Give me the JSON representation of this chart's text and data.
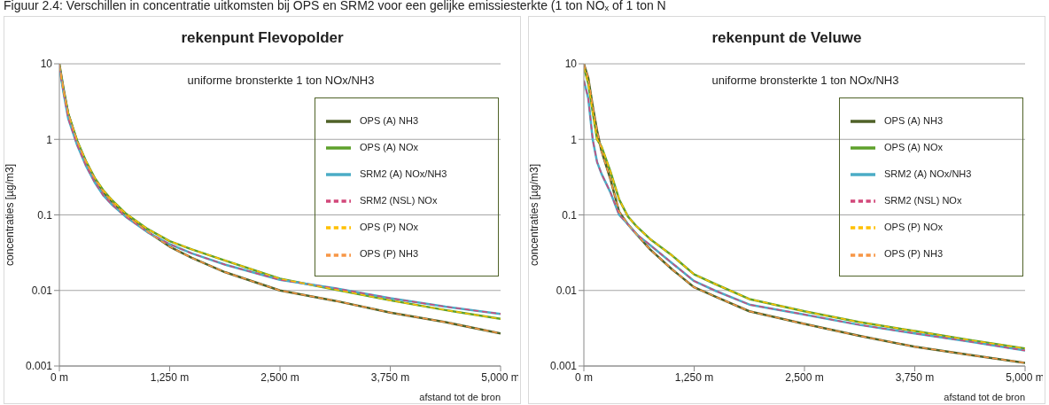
{
  "chart_data": [
    {
      "type": "line",
      "title": "rekenpunt Flevopolder",
      "subtitle": "uniforme bronsterkte 1 ton NOx/NH3",
      "xlabel": "afstand tot de bron",
      "ylabel": "concentraties [µg/m3]",
      "annotations": [
        "Figuur 2.4: Verschillen in concentratie uitkomsten bij OPS en SRM2 voor een gelijke emissiesterkte (1 ton NOₓ of 1 ton N"
      ],
      "x": [
        0,
        50,
        100,
        200,
        300,
        400,
        500,
        600,
        750,
        1000,
        1250,
        1500,
        1875,
        2500,
        3125,
        3750,
        4375,
        5000
      ],
      "xlim": [
        0,
        5000
      ],
      "xticks": [
        {
          "value": 0,
          "label": "0 m"
        },
        {
          "value": 1250,
          "label": "1,250 m"
        },
        {
          "value": 2500,
          "label": "2,500 m"
        },
        {
          "value": 3750,
          "label": "3,750 m"
        },
        {
          "value": 5000,
          "label": "5,000 m"
        }
      ],
      "ylim": [
        0.001,
        10
      ],
      "yticks": [
        0.001,
        0.01,
        0.1,
        1,
        10
      ],
      "log": "y",
      "grid": "y",
      "legend": "right",
      "series": [
        {
          "name": "OPS (P) NH3",
          "color": "#f79646",
          "line_style": "dashed",
          "values": [
            10,
            4.5,
            2.2,
            0.95,
            0.5,
            0.3,
            0.2,
            0.145,
            0.1,
            0.06,
            0.038,
            0.027,
            0.0175,
            0.01,
            0.0073,
            0.0051,
            0.0038,
            0.0027
          ]
        },
        {
          "name": "OPS (A) NH3",
          "color": "#4f6228",
          "line_style": "solid",
          "values": [
            10,
            4.5,
            2.2,
            0.95,
            0.5,
            0.3,
            0.2,
            0.145,
            0.1,
            0.06,
            0.038,
            0.027,
            0.0175,
            0.01,
            0.0073,
            0.0051,
            0.0038,
            0.0027
          ]
        },
        {
          "name": "OPS (P) NOx",
          "color": "#ffc000",
          "line_style": "dashed",
          "values": [
            9.5,
            4.2,
            2.2,
            0.97,
            0.52,
            0.31,
            0.21,
            0.155,
            0.105,
            0.065,
            0.045,
            0.035,
            0.025,
            0.0143,
            0.0103,
            0.0074,
            0.0055,
            0.0042
          ]
        },
        {
          "name": "OPS (A) NOx",
          "color": "#5ea12b",
          "line_style": "solid",
          "values": [
            9.5,
            4.2,
            2.2,
            0.97,
            0.52,
            0.31,
            0.21,
            0.155,
            0.105,
            0.065,
            0.045,
            0.035,
            0.025,
            0.0143,
            0.0103,
            0.0074,
            0.0055,
            0.0042
          ]
        },
        {
          "name": "SRM2 (NSL) NOx",
          "color": "#d2477a",
          "line_style": "dashed",
          "values": [
            9,
            4,
            1.9,
            0.85,
            0.45,
            0.27,
            0.18,
            0.135,
            0.095,
            0.059,
            0.041,
            0.031,
            0.022,
            0.0138,
            0.0107,
            0.0079,
            0.0061,
            0.0049
          ]
        },
        {
          "name": "SRM2 (A) NOx/NH3",
          "color": "#4bacc6",
          "line_style": "solid",
          "values": [
            9,
            4,
            1.9,
            0.85,
            0.45,
            0.27,
            0.18,
            0.135,
            0.095,
            0.059,
            0.041,
            0.031,
            0.022,
            0.0138,
            0.0107,
            0.0079,
            0.0061,
            0.0049
          ]
        }
      ]
    },
    {
      "type": "line",
      "title": "rekenpunt de Veluwe",
      "subtitle": "uniforme bronsterkte 1 ton NOx/NH3",
      "xlabel": "afstand tot de bron",
      "ylabel": "concentraties [µg/m3]",
      "x": [
        0,
        50,
        100,
        150,
        200,
        300,
        400,
        500,
        600,
        750,
        1000,
        1250,
        1500,
        1875,
        2500,
        3125,
        3750,
        4375,
        5000
      ],
      "xlim": [
        0,
        5000
      ],
      "xticks": [
        {
          "value": 0,
          "label": "0 m"
        },
        {
          "value": 1250,
          "label": "1,250 m"
        },
        {
          "value": 2500,
          "label": "2,500 m"
        },
        {
          "value": 3750,
          "label": "3,750 m"
        },
        {
          "value": 5000,
          "label": "5,000 m"
        }
      ],
      "ylim": [
        0.001,
        10
      ],
      "yticks": [
        0.001,
        0.01,
        0.1,
        1,
        10
      ],
      "log": "y",
      "grid": "y",
      "legend": "right",
      "series": [
        {
          "name": "OPS (P) NH3",
          "color": "#f79646",
          "line_style": "dashed",
          "values": [
            10,
            6.5,
            2.8,
            1.3,
            0.7,
            0.3,
            0.11,
            0.075,
            0.055,
            0.035,
            0.019,
            0.011,
            0.0082,
            0.0053,
            0.0036,
            0.0025,
            0.0018,
            0.0014,
            0.0011
          ]
        },
        {
          "name": "OPS (A) NH3",
          "color": "#4f6228",
          "line_style": "solid",
          "values": [
            10,
            6.5,
            2.8,
            1.3,
            0.7,
            0.3,
            0.11,
            0.075,
            0.055,
            0.035,
            0.019,
            0.011,
            0.0082,
            0.0053,
            0.0036,
            0.0025,
            0.0018,
            0.0014,
            0.0011
          ]
        },
        {
          "name": "OPS (P) NOx",
          "color": "#ffc000",
          "line_style": "dashed",
          "values": [
            9,
            5.5,
            2.3,
            1,
            0.8,
            0.38,
            0.16,
            0.095,
            0.07,
            0.048,
            0.029,
            0.0163,
            0.012,
            0.0077,
            0.0053,
            0.0038,
            0.0029,
            0.0022,
            0.0017
          ]
        },
        {
          "name": "OPS (A) NOx",
          "color": "#5ea12b",
          "line_style": "solid",
          "values": [
            9,
            5.5,
            2.3,
            1,
            0.8,
            0.38,
            0.16,
            0.095,
            0.07,
            0.048,
            0.029,
            0.0163,
            0.012,
            0.0077,
            0.0053,
            0.0038,
            0.0029,
            0.0022,
            0.0017
          ]
        },
        {
          "name": "SRM2 (NSL) NOx",
          "color": "#d2477a",
          "line_style": "dashed",
          "values": [
            6,
            3.5,
            1,
            0.5,
            0.35,
            0.2,
            0.1,
            0.075,
            0.055,
            0.04,
            0.023,
            0.0133,
            0.0098,
            0.0065,
            0.0048,
            0.0035,
            0.0027,
            0.0021,
            0.0016
          ]
        },
        {
          "name": "SRM2 (A) NOx/NH3",
          "color": "#4bacc6",
          "line_style": "solid",
          "values": [
            6,
            3.5,
            1,
            0.5,
            0.35,
            0.2,
            0.1,
            0.075,
            0.055,
            0.04,
            0.023,
            0.0133,
            0.0098,
            0.0065,
            0.0048,
            0.0035,
            0.0027,
            0.0021,
            0.0016
          ]
        }
      ]
    }
  ]
}
